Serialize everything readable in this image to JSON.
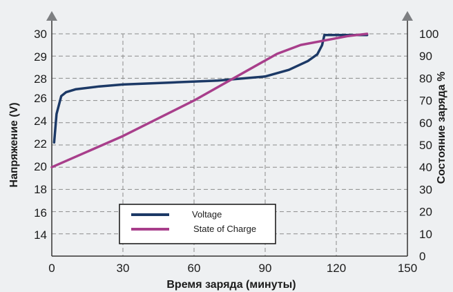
{
  "chart_data": {
    "type": "line",
    "xlabel": "Время заряда (минуты)",
    "ylabel": "Напряжение (V)",
    "y2label": "Состояние заряда %",
    "xlim": [
      0,
      150
    ],
    "x_ticks": [
      "0",
      "30",
      "60",
      "90",
      "120",
      "150"
    ],
    "y_ticks": [
      "14",
      "16",
      "18",
      "20",
      "22",
      "24",
      "26",
      "28",
      "29",
      "30"
    ],
    "y2lim": [
      0,
      100
    ],
    "y2_ticks": [
      "0",
      "10",
      "20",
      "30",
      "40",
      "50",
      "60",
      "70",
      "80",
      "90",
      "100"
    ],
    "grid": true,
    "legend_position": "bottom-center",
    "series": [
      {
        "name": "Voltage",
        "axis": "left",
        "color": "#1c3966",
        "x": [
          1,
          2,
          4,
          6,
          10,
          20,
          30,
          50,
          70,
          90,
          100,
          108,
          112,
          114,
          115,
          120,
          133
        ],
        "y": [
          22.1,
          24.6,
          26.2,
          26.6,
          26.9,
          27.2,
          27.4,
          27.6,
          27.8,
          28.1,
          28.4,
          28.8,
          29.1,
          29.5,
          29.95,
          29.95,
          29.95
        ]
      },
      {
        "name": "State of Charge",
        "axis": "right",
        "color": "#a83e8b",
        "x": [
          0,
          30,
          60,
          85,
          95,
          105,
          115,
          125,
          133
        ],
        "y": [
          40,
          54,
          70,
          85,
          91,
          95,
          97,
          99,
          100
        ]
      }
    ]
  }
}
